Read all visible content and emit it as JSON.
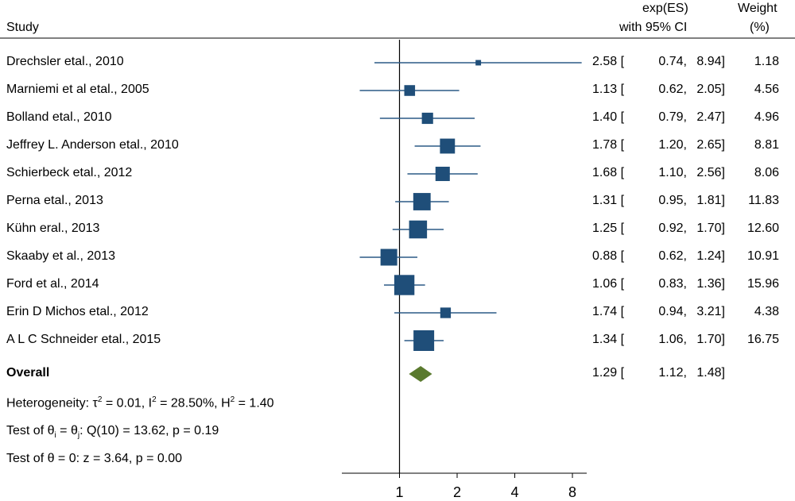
{
  "chart_data": {
    "type": "forest",
    "header": {
      "study_col": "Study",
      "es_col_line1": "exp(ES)",
      "es_col_line2": "with 95% CI",
      "weight_col_line1": "Weight",
      "weight_col_line2": "(%)"
    },
    "studies": [
      {
        "name": "Drechsler etal., 2010",
        "es": 2.58,
        "lo": 0.74,
        "hi": 8.94,
        "es_text": "2.58 [",
        "lo_text": "0.74,",
        "hi_text": "8.94]",
        "weight": 1.18,
        "weight_text": "1.18"
      },
      {
        "name": "Marniemi et al etal., 2005",
        "es": 1.13,
        "lo": 0.62,
        "hi": 2.05,
        "es_text": "1.13 [",
        "lo_text": "0.62,",
        "hi_text": "2.05]",
        "weight": 4.56,
        "weight_text": "4.56"
      },
      {
        "name": "Bolland etal., 2010",
        "es": 1.4,
        "lo": 0.79,
        "hi": 2.47,
        "es_text": "1.40 [",
        "lo_text": "0.79,",
        "hi_text": "2.47]",
        "weight": 4.96,
        "weight_text": "4.96"
      },
      {
        "name": "Jeffrey L. Anderson etal., 2010",
        "es": 1.78,
        "lo": 1.2,
        "hi": 2.65,
        "es_text": "1.78 [",
        "lo_text": "1.20,",
        "hi_text": "2.65]",
        "weight": 8.81,
        "weight_text": "8.81"
      },
      {
        "name": "Schierbeck etal., 2012",
        "es": 1.68,
        "lo": 1.1,
        "hi": 2.56,
        "es_text": "1.68 [",
        "lo_text": "1.10,",
        "hi_text": "2.56]",
        "weight": 8.06,
        "weight_text": "8.06"
      },
      {
        "name": "Perna etal., 2013",
        "es": 1.31,
        "lo": 0.95,
        "hi": 1.81,
        "es_text": "1.31 [",
        "lo_text": "0.95,",
        "hi_text": "1.81]",
        "weight": 11.83,
        "weight_text": "11.83"
      },
      {
        "name": "Kühn eral., 2013",
        "es": 1.25,
        "lo": 0.92,
        "hi": 1.7,
        "es_text": "1.25 [",
        "lo_text": "0.92,",
        "hi_text": "1.70]",
        "weight": 12.6,
        "weight_text": "12.60"
      },
      {
        "name": "Skaaby et al., 2013",
        "es": 0.88,
        "lo": 0.62,
        "hi": 1.24,
        "es_text": "0.88 [",
        "lo_text": "0.62,",
        "hi_text": "1.24]",
        "weight": 10.91,
        "weight_text": "10.91"
      },
      {
        "name": "Ford et al., 2014",
        "es": 1.06,
        "lo": 0.83,
        "hi": 1.36,
        "es_text": "1.06 [",
        "lo_text": "0.83,",
        "hi_text": "1.36]",
        "weight": 15.96,
        "weight_text": "15.96"
      },
      {
        "name": "Erin D Michos etal., 2012",
        "es": 1.74,
        "lo": 0.94,
        "hi": 3.21,
        "es_text": "1.74 [",
        "lo_text": "0.94,",
        "hi_text": "3.21]",
        "weight": 4.38,
        "weight_text": "4.38"
      },
      {
        "name": "A L C Schneider etal., 2015",
        "es": 1.34,
        "lo": 1.06,
        "hi": 1.7,
        "es_text": "1.34 [",
        "lo_text": "1.06,",
        "hi_text": "1.70]",
        "weight": 16.75,
        "weight_text": "16.75"
      }
    ],
    "overall": {
      "label": "Overall",
      "es": 1.29,
      "lo": 1.12,
      "hi": 1.48,
      "es_text": "1.29 [",
      "lo_text": "1.12,",
      "hi_text": "1.48]"
    },
    "heterogeneity": {
      "prefix": "Heterogeneity: τ",
      "tau_sup": "2",
      "mid1": " = 0.01, I",
      "i_sup": "2",
      "mid2": " = 28.50%, H",
      "h_sup": "2",
      "end": " = 1.40"
    },
    "test_q": {
      "p1": "Test of θ",
      "sub_i": "i",
      "p2": " = θ",
      "sub_j": "j",
      "p3": ": Q(10) = 13.62, p = 0.19"
    },
    "test_z": "Test of θ = 0: z = 3.64, p = 0.00",
    "x_axis": {
      "scale": "log",
      "ticks": [
        1,
        2,
        4,
        8
      ],
      "tick_labels": [
        "1",
        "2",
        "4",
        "8"
      ],
      "xlim": [
        0.5,
        9.5
      ],
      "reference_line": 1
    },
    "colors": {
      "marker": "#1f4e79",
      "ci_line": "#2c5a85",
      "diamond": "#5a7a2e",
      "text": "#000000"
    }
  }
}
